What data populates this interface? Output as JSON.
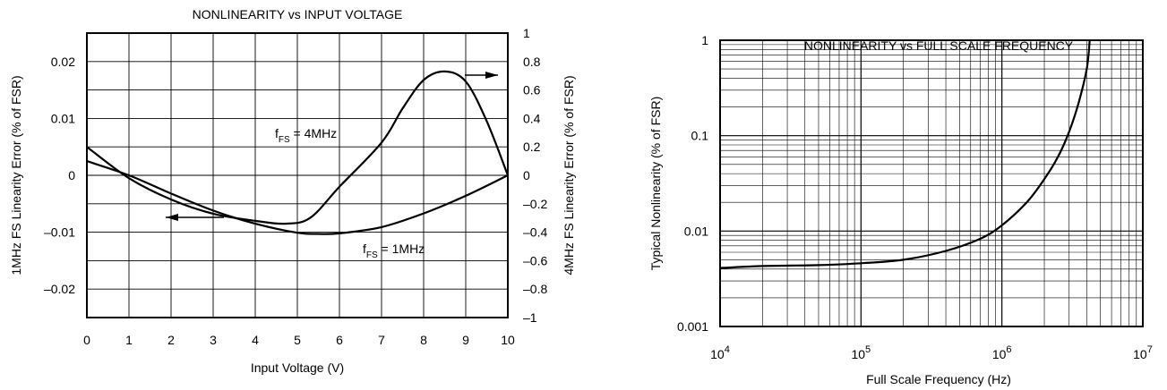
{
  "chart_data": [
    {
      "type": "line",
      "title": "NONLINEARITY vs INPUT VOLTAGE",
      "xlabel": "Input Voltage (V)",
      "ylabel_left": "1MHz FS Linearity Error (% of FSR)",
      "ylabel_right": "4MHz FS Linearity Error (% of FSR)",
      "xlim": [
        0,
        10
      ],
      "ylim_left": [
        -0.025,
        0.025
      ],
      "ylim_right": [
        -1,
        1
      ],
      "x_ticks": [
        "0",
        "1",
        "2",
        "3",
        "4",
        "5",
        "6",
        "7",
        "8",
        "9",
        "10"
      ],
      "y_left_ticks": [
        {
          "value": 0.02,
          "label": "0.02"
        },
        {
          "value": 0.01,
          "label": "0.01"
        },
        {
          "value": 0,
          "label": "0"
        },
        {
          "value": -0.01,
          "label": "–0.01"
        },
        {
          "value": -0.02,
          "label": "–0.02"
        }
      ],
      "y_right_ticks": [
        {
          "value": 1,
          "label": "1"
        },
        {
          "value": 0.8,
          "label": "0.8"
        },
        {
          "value": 0.6,
          "label": "0.6"
        },
        {
          "value": 0.4,
          "label": "0.4"
        },
        {
          "value": 0.2,
          "label": "0.2"
        },
        {
          "value": 0,
          "label": "0"
        },
        {
          "value": -0.2,
          "label": "–0.2"
        },
        {
          "value": -0.4,
          "label": "–0.4"
        },
        {
          "value": -0.6,
          "label": "–0.6"
        },
        {
          "value": -0.8,
          "label": "–0.8"
        },
        {
          "value": -1,
          "label": "–1"
        }
      ],
      "grid": true,
      "series": [
        {
          "name": "fFS = 1MHz",
          "axis": "left",
          "x": [
            0,
            1,
            2,
            3,
            4,
            5,
            5.5,
            6,
            7,
            8,
            9,
            10
          ],
          "y": [
            0.0025,
            0,
            -0.0032,
            -0.0062,
            -0.0085,
            -0.0101,
            -0.0103,
            -0.0102,
            -0.0091,
            -0.0067,
            -0.0036,
            0
          ]
        },
        {
          "name": "fFS = 4MHz",
          "axis": "right",
          "x": [
            0,
            1,
            2,
            3,
            4,
            4.7,
            5.3,
            6,
            7,
            7.5,
            8,
            8.5,
            9,
            9.5,
            10
          ],
          "y": [
            0.2,
            -0.02,
            -0.17,
            -0.27,
            -0.32,
            -0.34,
            -0.3,
            -0.08,
            0.23,
            0.47,
            0.67,
            0.73,
            0.66,
            0.38,
            0
          ]
        }
      ],
      "annotations": {
        "label_4mhz": {
          "main": "f",
          "sub": "FS",
          "rest": " = 4MHz"
        },
        "label_1mhz": {
          "main": "f",
          "sub": "FS",
          "rest": " = 1MHz"
        },
        "arrow_right_series": "arrow pointing right toward 4MHz axis",
        "arrow_left_series": "arrow pointing left toward 1MHz axis"
      }
    },
    {
      "type": "line",
      "title": "NONLINEARITY vs FULL SCALE FREQUENCY",
      "xlabel": "Full Scale Frequency (Hz)",
      "ylabel": "Typical Nonlinearity (% of FSR)",
      "x_scale": "log",
      "y_scale": "log",
      "xlim": [
        10000,
        10000000
      ],
      "ylim": [
        0.001,
        1
      ],
      "x_ticks": [
        {
          "value": 10000,
          "base": "10",
          "exp": "4"
        },
        {
          "value": 100000,
          "base": "10",
          "exp": "5"
        },
        {
          "value": 1000000,
          "base": "10",
          "exp": "6"
        },
        {
          "value": 10000000,
          "base": "10",
          "exp": "7"
        }
      ],
      "y_ticks": [
        {
          "value": 1,
          "label": "1"
        },
        {
          "value": 0.1,
          "label": "0.1"
        },
        {
          "value": 0.01,
          "label": "0.01"
        },
        {
          "value": 0.001,
          "label": "0.001"
        }
      ],
      "grid": true,
      "series": [
        {
          "name": "",
          "x": [
            10000,
            20000,
            50000,
            100000,
            200000,
            400000,
            700000,
            1000000,
            1500000,
            2000000,
            2500000,
            3000000,
            3500000,
            4000000,
            4200000
          ],
          "y": [
            0.0041,
            0.0043,
            0.0044,
            0.0046,
            0.005,
            0.0062,
            0.0083,
            0.0115,
            0.02,
            0.035,
            0.06,
            0.11,
            0.22,
            0.5,
            1.0
          ]
        }
      ]
    }
  ]
}
